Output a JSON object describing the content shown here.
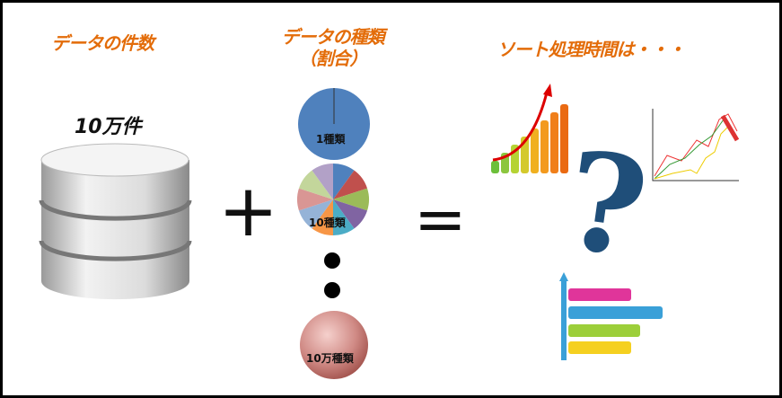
{
  "titles": {
    "count": "データの件数",
    "kinds_line1": "データの種類",
    "kinds_line2": "（割合）",
    "sort_time": "ソート処理時間は・・・"
  },
  "labels": {
    "record_count": "10万件",
    "pie_one": "1種類",
    "pie_ten": "10種類",
    "pie_100k": "10万種類"
  },
  "symbols": {
    "plus": "+",
    "equals": "=",
    "question": "?"
  },
  "colors": {
    "title": "#e36c09",
    "pie_one": "#4f81bd",
    "sphere": "#c0504d",
    "question": "#1f4e79"
  },
  "pie_ten_colors": [
    "#4f81bd",
    "#c0504d",
    "#9bbb59",
    "#8064a2",
    "#4bacc6",
    "#f79646",
    "#95b3d7",
    "#d99694",
    "#c3d69b",
    "#b2a1c7"
  ]
}
